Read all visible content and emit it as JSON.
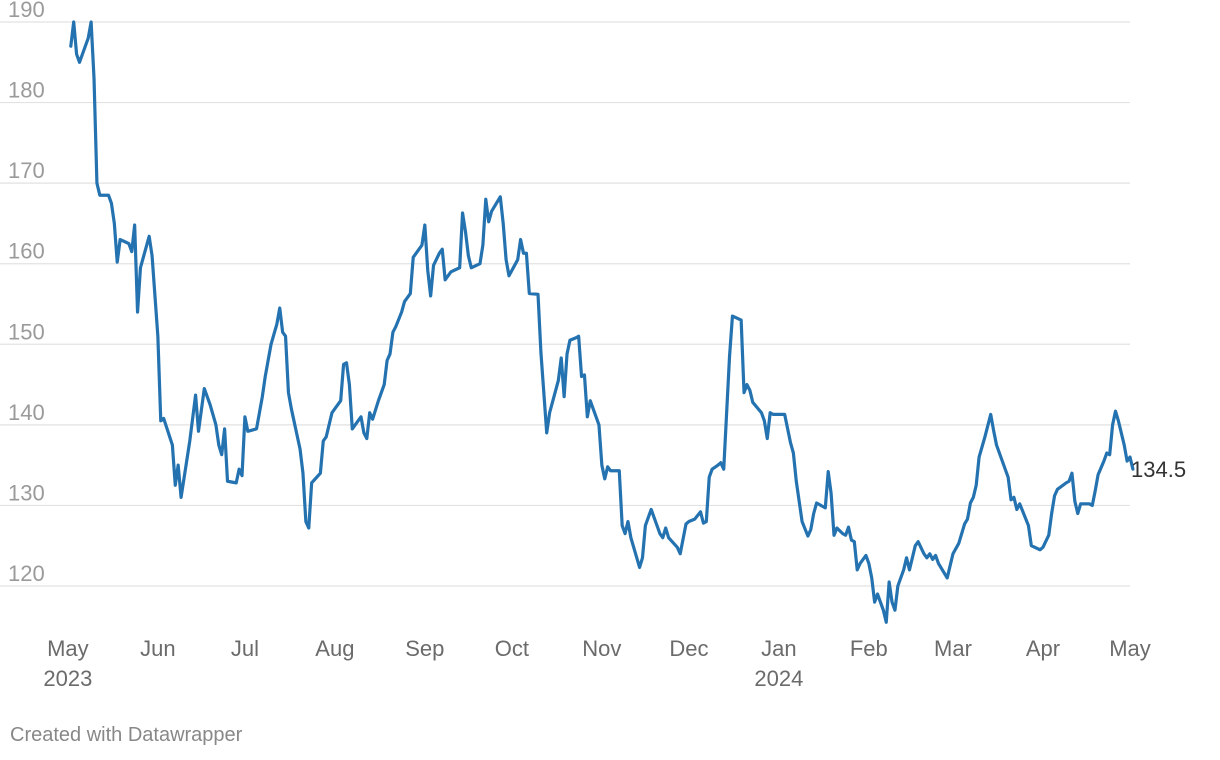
{
  "footer": {
    "credit": "Created with Datawrapper"
  },
  "colors": {
    "line": "#2473b0",
    "grid": "#e2e2e2"
  },
  "chart_data": {
    "type": "line",
    "title": "",
    "xlabel": "",
    "ylabel": "",
    "ylim": [
      116,
      190
    ],
    "y_ticks": [
      120,
      130,
      140,
      150,
      160,
      170,
      180,
      190
    ],
    "grid": "horizontal",
    "x_range": [
      "2023-04-30",
      "2024-05-01"
    ],
    "x_ticks": [
      {
        "date": "2023-05-01",
        "label": "May",
        "sublabel": "2023"
      },
      {
        "date": "2023-06-01",
        "label": "Jun",
        "sublabel": ""
      },
      {
        "date": "2023-07-01",
        "label": "Jul",
        "sublabel": ""
      },
      {
        "date": "2023-08-01",
        "label": "Aug",
        "sublabel": ""
      },
      {
        "date": "2023-09-01",
        "label": "Sep",
        "sublabel": ""
      },
      {
        "date": "2023-10-01",
        "label": "Oct",
        "sublabel": ""
      },
      {
        "date": "2023-11-01",
        "label": "Nov",
        "sublabel": ""
      },
      {
        "date": "2023-12-01",
        "label": "Dec",
        "sublabel": ""
      },
      {
        "date": "2024-01-01",
        "label": "Jan",
        "sublabel": "2024"
      },
      {
        "date": "2024-02-01",
        "label": "Feb",
        "sublabel": ""
      },
      {
        "date": "2024-03-01",
        "label": "Mar",
        "sublabel": ""
      },
      {
        "date": "2024-04-01",
        "label": "Apr",
        "sublabel": ""
      },
      {
        "date": "2024-05-01",
        "label": "May",
        "sublabel": ""
      }
    ],
    "end_label": "134.5",
    "series": [
      {
        "points": [
          [
            "2023-05-02",
            187
          ],
          [
            "2023-05-03",
            190
          ],
          [
            "2023-05-04",
            186
          ],
          [
            "2023-05-05",
            185
          ],
          [
            "2023-05-06",
            186
          ],
          [
            "2023-05-08",
            188
          ],
          [
            "2023-05-09",
            190
          ],
          [
            "2023-05-10",
            183
          ],
          [
            "2023-05-11",
            170
          ],
          [
            "2023-05-12",
            168.5
          ],
          [
            "2023-05-15",
            168.5
          ],
          [
            "2023-05-16",
            167.5
          ],
          [
            "2023-05-17",
            165
          ],
          [
            "2023-05-18",
            160.2
          ],
          [
            "2023-05-19",
            163
          ],
          [
            "2023-05-22",
            162.5
          ],
          [
            "2023-05-23",
            161.5
          ],
          [
            "2023-05-24",
            164.8
          ],
          [
            "2023-05-25",
            154
          ],
          [
            "2023-05-26",
            159.5
          ],
          [
            "2023-05-29",
            163.4
          ],
          [
            "2023-05-30",
            161
          ],
          [
            "2023-06-01",
            151
          ],
          [
            "2023-06-02",
            140.5
          ],
          [
            "2023-06-03",
            140.8
          ],
          [
            "2023-06-06",
            137.5
          ],
          [
            "2023-06-07",
            132.5
          ],
          [
            "2023-06-08",
            135
          ],
          [
            "2023-06-09",
            131
          ],
          [
            "2023-06-12",
            138
          ],
          [
            "2023-06-14",
            143.7
          ],
          [
            "2023-06-15",
            139.2
          ],
          [
            "2023-06-17",
            144.5
          ],
          [
            "2023-06-19",
            142.5
          ],
          [
            "2023-06-21",
            140
          ],
          [
            "2023-06-22",
            137.5
          ],
          [
            "2023-06-23",
            136.3
          ],
          [
            "2023-06-24",
            139.5
          ],
          [
            "2023-06-25",
            133
          ],
          [
            "2023-06-28",
            132.8
          ],
          [
            "2023-06-29",
            134.5
          ],
          [
            "2023-06-30",
            133.7
          ],
          [
            "2023-07-01",
            141
          ],
          [
            "2023-07-02",
            139.2
          ],
          [
            "2023-07-05",
            139.5
          ],
          [
            "2023-07-07",
            143.5
          ],
          [
            "2023-07-08",
            146
          ],
          [
            "2023-07-10",
            150
          ],
          [
            "2023-07-12",
            152.5
          ],
          [
            "2023-07-13",
            154.5
          ],
          [
            "2023-07-14",
            151.5
          ],
          [
            "2023-07-15",
            151
          ],
          [
            "2023-07-16",
            144
          ],
          [
            "2023-07-17",
            142
          ],
          [
            "2023-07-20",
            137
          ],
          [
            "2023-07-21",
            134
          ],
          [
            "2023-07-22",
            128
          ],
          [
            "2023-07-23",
            127.2
          ],
          [
            "2023-07-24",
            132.8
          ],
          [
            "2023-07-27",
            134
          ],
          [
            "2023-07-28",
            138
          ],
          [
            "2023-07-29",
            138.5
          ],
          [
            "2023-07-31",
            141.5
          ],
          [
            "2023-08-01",
            142
          ],
          [
            "2023-08-03",
            143
          ],
          [
            "2023-08-04",
            147.5
          ],
          [
            "2023-08-05",
            147.7
          ],
          [
            "2023-08-06",
            145
          ],
          [
            "2023-08-07",
            139.5
          ],
          [
            "2023-08-09",
            140.5
          ],
          [
            "2023-08-10",
            141
          ],
          [
            "2023-08-11",
            139
          ],
          [
            "2023-08-12",
            138.3
          ],
          [
            "2023-08-13",
            141.5
          ],
          [
            "2023-08-14",
            140.7
          ],
          [
            "2023-08-16",
            143
          ],
          [
            "2023-08-18",
            145
          ],
          [
            "2023-08-19",
            148
          ],
          [
            "2023-08-20",
            148.8
          ],
          [
            "2023-08-21",
            151.5
          ],
          [
            "2023-08-22",
            152.2
          ],
          [
            "2023-08-24",
            154
          ],
          [
            "2023-08-25",
            155.3
          ],
          [
            "2023-08-27",
            156.3
          ],
          [
            "2023-08-28",
            160.8
          ],
          [
            "2023-08-30",
            161.8
          ],
          [
            "2023-08-31",
            162.3
          ],
          [
            "2023-09-01",
            164.8
          ],
          [
            "2023-09-02",
            159.2
          ],
          [
            "2023-09-03",
            156
          ],
          [
            "2023-09-04",
            159.8
          ],
          [
            "2023-09-06",
            161.3
          ],
          [
            "2023-09-07",
            161.8
          ],
          [
            "2023-09-08",
            158
          ],
          [
            "2023-09-09",
            158.5
          ],
          [
            "2023-09-10",
            159
          ],
          [
            "2023-09-13",
            159.5
          ],
          [
            "2023-09-14",
            166.3
          ],
          [
            "2023-09-15",
            164
          ],
          [
            "2023-09-16",
            161
          ],
          [
            "2023-09-17",
            159.5
          ],
          [
            "2023-09-20",
            160
          ],
          [
            "2023-09-21",
            162.3
          ],
          [
            "2023-09-22",
            168
          ],
          [
            "2023-09-23",
            165.2
          ],
          [
            "2023-09-24",
            166.5
          ],
          [
            "2023-09-27",
            168.3
          ],
          [
            "2023-09-28",
            165
          ],
          [
            "2023-09-29",
            160.5
          ],
          [
            "2023-09-30",
            158.5
          ],
          [
            "2023-10-03",
            160.5
          ],
          [
            "2023-10-04",
            163
          ],
          [
            "2023-10-05",
            161.3
          ],
          [
            "2023-10-06",
            161.3
          ],
          [
            "2023-10-07",
            156.3
          ],
          [
            "2023-10-10",
            156.2
          ],
          [
            "2023-10-11",
            149
          ],
          [
            "2023-10-13",
            139
          ],
          [
            "2023-10-14",
            141.5
          ],
          [
            "2023-10-17",
            145.5
          ],
          [
            "2023-10-18",
            148.3
          ],
          [
            "2023-10-19",
            143.5
          ],
          [
            "2023-10-20",
            148.8
          ],
          [
            "2023-10-21",
            150.5
          ],
          [
            "2023-10-23",
            150.8
          ],
          [
            "2023-10-24",
            151
          ],
          [
            "2023-10-25",
            146
          ],
          [
            "2023-10-26",
            146.2
          ],
          [
            "2023-10-27",
            141
          ],
          [
            "2023-10-28",
            143
          ],
          [
            "2023-10-29",
            142
          ],
          [
            "2023-10-31",
            140
          ],
          [
            "2023-11-01",
            135
          ],
          [
            "2023-11-02",
            133.3
          ],
          [
            "2023-11-03",
            134.8
          ],
          [
            "2023-11-04",
            134.3
          ],
          [
            "2023-11-07",
            134.3
          ],
          [
            "2023-11-08",
            127.5
          ],
          [
            "2023-11-09",
            126.5
          ],
          [
            "2023-11-10",
            128
          ],
          [
            "2023-11-11",
            126
          ],
          [
            "2023-11-14",
            122.3
          ],
          [
            "2023-11-15",
            123.5
          ],
          [
            "2023-11-16",
            127.5
          ],
          [
            "2023-11-18",
            129.5
          ],
          [
            "2023-11-19",
            128.5
          ],
          [
            "2023-11-21",
            126.5
          ],
          [
            "2023-11-22",
            126
          ],
          [
            "2023-11-23",
            127.2
          ],
          [
            "2023-11-24",
            126
          ],
          [
            "2023-11-27",
            124.8
          ],
          [
            "2023-11-28",
            124
          ],
          [
            "2023-11-30",
            127.7
          ],
          [
            "2023-12-01",
            128
          ],
          [
            "2023-12-03",
            128.3
          ],
          [
            "2023-12-05",
            129.2
          ],
          [
            "2023-12-06",
            127.8
          ],
          [
            "2023-12-07",
            128
          ],
          [
            "2023-12-08",
            133.5
          ],
          [
            "2023-12-09",
            134.5
          ],
          [
            "2023-12-11",
            135
          ],
          [
            "2023-12-12",
            135.3
          ],
          [
            "2023-12-13",
            134.5
          ],
          [
            "2023-12-15",
            148.5
          ],
          [
            "2023-12-16",
            153.5
          ],
          [
            "2023-12-19",
            153
          ],
          [
            "2023-12-20",
            144
          ],
          [
            "2023-12-21",
            145
          ],
          [
            "2023-12-22",
            144.3
          ],
          [
            "2023-12-23",
            142.8
          ],
          [
            "2023-12-26",
            141.5
          ],
          [
            "2023-12-27",
            140.5
          ],
          [
            "2023-12-28",
            138.3
          ],
          [
            "2023-12-29",
            141.5
          ],
          [
            "2023-12-30",
            141.3
          ],
          [
            "2024-01-02",
            141.3
          ],
          [
            "2024-01-03",
            141.3
          ],
          [
            "2024-01-05",
            137.8
          ],
          [
            "2024-01-06",
            136.5
          ],
          [
            "2024-01-07",
            133
          ],
          [
            "2024-01-09",
            128
          ],
          [
            "2024-01-11",
            126.2
          ],
          [
            "2024-01-12",
            127
          ],
          [
            "2024-01-13",
            129
          ],
          [
            "2024-01-14",
            130.3
          ],
          [
            "2024-01-17",
            129.7
          ],
          [
            "2024-01-18",
            134.2
          ],
          [
            "2024-01-19",
            131.5
          ],
          [
            "2024-01-20",
            126.3
          ],
          [
            "2024-01-21",
            127.2
          ],
          [
            "2024-01-23",
            126.5
          ],
          [
            "2024-01-24",
            126.3
          ],
          [
            "2024-01-25",
            127.3
          ],
          [
            "2024-01-26",
            125.7
          ],
          [
            "2024-01-27",
            125.5
          ],
          [
            "2024-01-28",
            122
          ],
          [
            "2024-01-29",
            122.8
          ],
          [
            "2024-01-31",
            123.8
          ],
          [
            "2024-02-01",
            122.8
          ],
          [
            "2024-02-02",
            121
          ],
          [
            "2024-02-03",
            118
          ],
          [
            "2024-02-04",
            119
          ],
          [
            "2024-02-06",
            117
          ],
          [
            "2024-02-07",
            115.5
          ],
          [
            "2024-02-08",
            120.5
          ],
          [
            "2024-02-09",
            118
          ],
          [
            "2024-02-10",
            117
          ],
          [
            "2024-02-11",
            120
          ],
          [
            "2024-02-13",
            122
          ],
          [
            "2024-02-14",
            123.5
          ],
          [
            "2024-02-15",
            122
          ],
          [
            "2024-02-17",
            125
          ],
          [
            "2024-02-18",
            125.5
          ],
          [
            "2024-02-20",
            124
          ],
          [
            "2024-02-21",
            123.5
          ],
          [
            "2024-02-22",
            124
          ],
          [
            "2024-02-23",
            123.3
          ],
          [
            "2024-02-24",
            123.8
          ],
          [
            "2024-02-25",
            122.8
          ],
          [
            "2024-02-28",
            121
          ],
          [
            "2024-02-29",
            122.5
          ],
          [
            "2024-03-01",
            124
          ],
          [
            "2024-03-03",
            125.3
          ],
          [
            "2024-03-05",
            127.7
          ],
          [
            "2024-03-06",
            128.3
          ],
          [
            "2024-03-07",
            130.3
          ],
          [
            "2024-03-08",
            131
          ],
          [
            "2024-03-09",
            132.5
          ],
          [
            "2024-03-10",
            136
          ],
          [
            "2024-03-12",
            138.5
          ],
          [
            "2024-03-14",
            141.3
          ],
          [
            "2024-03-15",
            139.3
          ],
          [
            "2024-03-16",
            137.5
          ],
          [
            "2024-03-20",
            133.5
          ],
          [
            "2024-03-21",
            130.7
          ],
          [
            "2024-03-22",
            131
          ],
          [
            "2024-03-23",
            129.5
          ],
          [
            "2024-03-24",
            130.2
          ],
          [
            "2024-03-27",
            127.5
          ],
          [
            "2024-03-28",
            125
          ],
          [
            "2024-03-31",
            124.5
          ],
          [
            "2024-04-01",
            124.8
          ],
          [
            "2024-04-03",
            126.3
          ],
          [
            "2024-04-04",
            129
          ],
          [
            "2024-04-05",
            131.2
          ],
          [
            "2024-04-06",
            132
          ],
          [
            "2024-04-09",
            132.8
          ],
          [
            "2024-04-10",
            133
          ],
          [
            "2024-04-11",
            134
          ],
          [
            "2024-04-12",
            130.5
          ],
          [
            "2024-04-13",
            129
          ],
          [
            "2024-04-14",
            130.2
          ],
          [
            "2024-04-17",
            130.2
          ],
          [
            "2024-04-18",
            130
          ],
          [
            "2024-04-19",
            131.8
          ],
          [
            "2024-04-20",
            133.8
          ],
          [
            "2024-04-22",
            135.5
          ],
          [
            "2024-04-23",
            136.5
          ],
          [
            "2024-04-24",
            136.3
          ],
          [
            "2024-04-25",
            140
          ],
          [
            "2024-04-26",
            141.7
          ],
          [
            "2024-04-27",
            140.5
          ],
          [
            "2024-04-29",
            137.5
          ],
          [
            "2024-04-30",
            135.5
          ],
          [
            "2024-05-01",
            136
          ],
          [
            "2024-05-02",
            134.5
          ]
        ]
      }
    ]
  }
}
